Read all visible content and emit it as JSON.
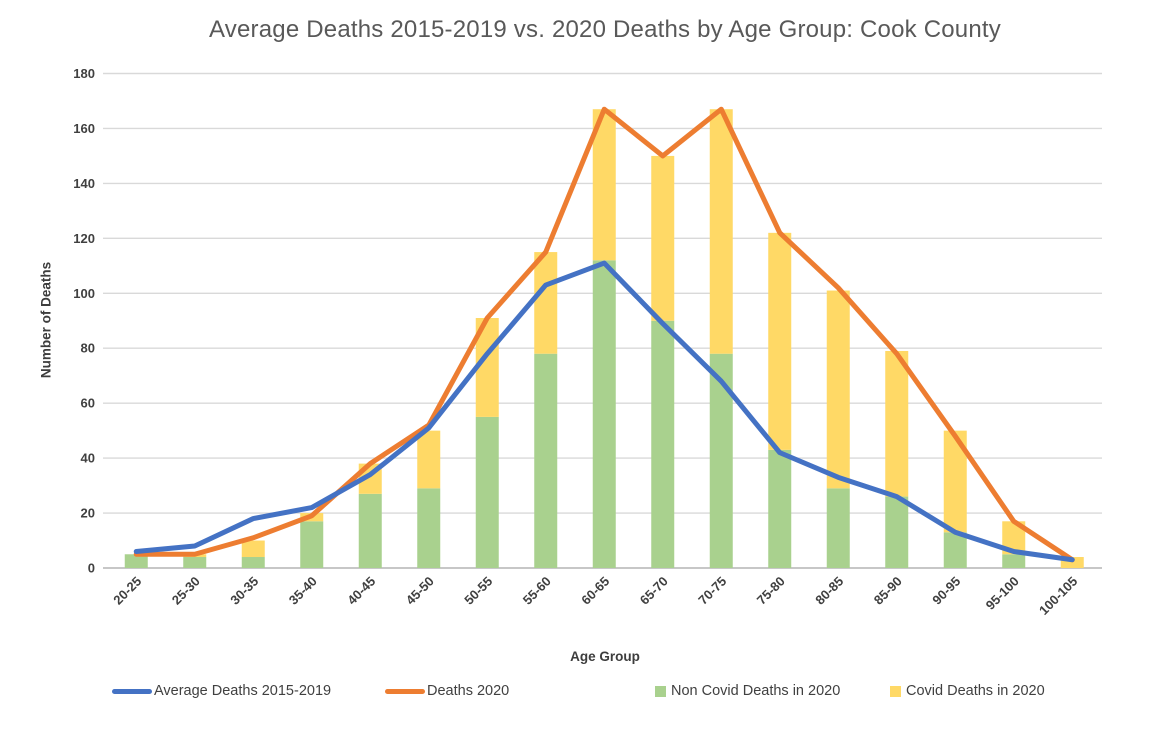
{
  "page": {
    "background": "#FFFFFF",
    "text_color": "#404040",
    "title_color": "#595959",
    "gridline_color": "#D9D9D9",
    "axis_line_color": "#BFBFBF"
  },
  "chart_data": {
    "type": "combo",
    "title": "Average Deaths 2015-2019 vs. 2020 Deaths by Age Group: Cook County",
    "xlabel": "Age Group",
    "ylabel": "Number of Deaths",
    "ylim": [
      0,
      180
    ],
    "ytick_step": 20,
    "yticks": [
      0,
      20,
      40,
      60,
      80,
      100,
      120,
      140,
      160,
      180
    ],
    "grid": true,
    "legend_position": "bottom",
    "categories": [
      "20-25",
      "25-30",
      "30-35",
      "35-40",
      "40-45",
      "45-50",
      "50-55",
      "55-60",
      "60-65",
      "65-70",
      "70-75",
      "75-80",
      "80-85",
      "85-90",
      "90-95",
      "95-100",
      "100-105"
    ],
    "series": [
      {
        "name": "Average Deaths 2015-2019",
        "type": "line",
        "color": "#4472C4",
        "values": [
          6,
          8,
          18,
          22,
          34,
          51,
          78,
          103,
          111,
          89,
          68,
          42,
          33,
          26,
          13,
          6,
          3
        ]
      },
      {
        "name": "Deaths 2020",
        "type": "line",
        "color": "#ED7D31",
        "values": [
          5,
          5,
          11,
          19,
          38,
          52,
          91,
          115,
          167,
          150,
          167,
          122,
          102,
          78,
          48,
          17,
          3
        ]
      },
      {
        "name": "Non Covid Deaths in 2020",
        "type": "bar",
        "stack": "deaths-2020",
        "color": "#A9D18E",
        "values": [
          5,
          4,
          4,
          17,
          27,
          29,
          55,
          78,
          112,
          90,
          78,
          43,
          29,
          26,
          13,
          5,
          0
        ]
      },
      {
        "name": "Covid Deaths in 2020",
        "type": "bar",
        "stack": "deaths-2020",
        "color": "#FFD966",
        "values": [
          0,
          1,
          6,
          3,
          11,
          21,
          36,
          37,
          55,
          60,
          89,
          79,
          72,
          53,
          37,
          12,
          4
        ]
      }
    ]
  }
}
